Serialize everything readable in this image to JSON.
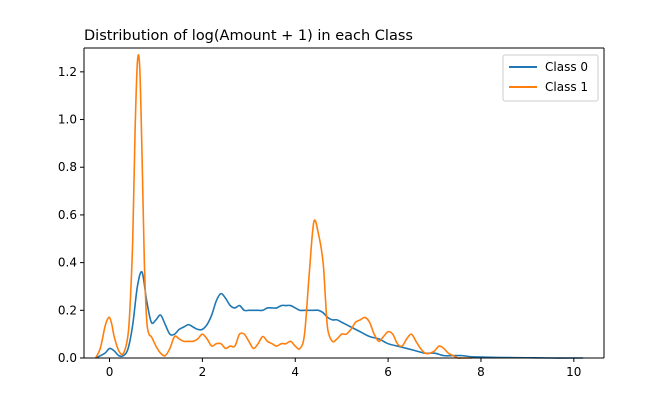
{
  "chart_data": {
    "type": "line",
    "title": "Distribution of log(Amount + 1) in each Class",
    "xlabel": "",
    "ylabel": "",
    "xlim": [
      -0.55,
      10.65
    ],
    "ylim": [
      0,
      1.3
    ],
    "xticks": [
      0,
      2,
      4,
      6,
      8,
      10
    ],
    "yticks": [
      0.0,
      0.2,
      0.4,
      0.6,
      0.8,
      1.0,
      1.2
    ],
    "grid": false,
    "legend_position": "top-right",
    "series": [
      {
        "name": "Class 0",
        "color": "#1f77b4",
        "x": [
          -0.3,
          -0.1,
          0.0,
          0.1,
          0.2,
          0.3,
          0.4,
          0.5,
          0.6,
          0.7,
          0.8,
          0.9,
          1.0,
          1.1,
          1.2,
          1.3,
          1.4,
          1.5,
          1.6,
          1.7,
          1.8,
          1.9,
          2.0,
          2.1,
          2.2,
          2.3,
          2.4,
          2.5,
          2.6,
          2.7,
          2.8,
          2.9,
          3.0,
          3.1,
          3.2,
          3.3,
          3.4,
          3.5,
          3.6,
          3.7,
          3.8,
          3.9,
          4.0,
          4.1,
          4.2,
          4.3,
          4.4,
          4.5,
          4.6,
          4.7,
          4.8,
          4.9,
          5.0,
          5.2,
          5.4,
          5.6,
          5.8,
          6.0,
          6.2,
          6.4,
          6.6,
          6.8,
          7.0,
          7.2,
          7.4,
          7.6,
          7.8,
          8.0,
          8.5,
          9.0,
          9.5,
          10.0,
          10.2
        ],
        "values": [
          0.0,
          0.02,
          0.04,
          0.03,
          0.01,
          0.01,
          0.04,
          0.14,
          0.3,
          0.36,
          0.24,
          0.15,
          0.16,
          0.18,
          0.14,
          0.1,
          0.1,
          0.12,
          0.13,
          0.14,
          0.13,
          0.12,
          0.12,
          0.14,
          0.18,
          0.24,
          0.27,
          0.25,
          0.22,
          0.21,
          0.22,
          0.2,
          0.2,
          0.2,
          0.2,
          0.2,
          0.21,
          0.21,
          0.21,
          0.22,
          0.22,
          0.22,
          0.21,
          0.2,
          0.2,
          0.2,
          0.2,
          0.2,
          0.19,
          0.17,
          0.16,
          0.16,
          0.15,
          0.13,
          0.11,
          0.09,
          0.08,
          0.06,
          0.05,
          0.04,
          0.03,
          0.02,
          0.02,
          0.01,
          0.01,
          0.01,
          0.005,
          0.004,
          0.002,
          0.001,
          0.0,
          0.0,
          0.0
        ]
      },
      {
        "name": "Class 1",
        "color": "#ff7f0e",
        "x": [
          -0.3,
          -0.2,
          -0.1,
          -0.05,
          0.0,
          0.05,
          0.1,
          0.2,
          0.3,
          0.4,
          0.45,
          0.5,
          0.55,
          0.6,
          0.65,
          0.7,
          0.75,
          0.8,
          0.85,
          0.9,
          1.0,
          1.1,
          1.2,
          1.3,
          1.4,
          1.5,
          1.6,
          1.7,
          1.8,
          1.9,
          2.0,
          2.1,
          2.2,
          2.3,
          2.4,
          2.5,
          2.6,
          2.7,
          2.8,
          2.9,
          3.0,
          3.1,
          3.2,
          3.3,
          3.4,
          3.5,
          3.6,
          3.7,
          3.8,
          3.9,
          4.0,
          4.1,
          4.2,
          4.3,
          4.4,
          4.5,
          4.6,
          4.65,
          4.7,
          4.8,
          4.9,
          5.0,
          5.1,
          5.2,
          5.3,
          5.4,
          5.5,
          5.6,
          5.7,
          5.8,
          5.9,
          6.0,
          6.1,
          6.2,
          6.3,
          6.4,
          6.5,
          6.6,
          6.7,
          6.8,
          6.9,
          7.0,
          7.1,
          7.2,
          7.3,
          7.4,
          7.5,
          7.6,
          7.8
        ],
        "values": [
          0.0,
          0.04,
          0.13,
          0.16,
          0.17,
          0.14,
          0.09,
          0.03,
          0.02,
          0.1,
          0.25,
          0.5,
          0.95,
          1.24,
          1.22,
          0.85,
          0.4,
          0.16,
          0.1,
          0.09,
          0.05,
          0.02,
          0.01,
          0.04,
          0.09,
          0.08,
          0.07,
          0.07,
          0.07,
          0.08,
          0.1,
          0.08,
          0.05,
          0.06,
          0.06,
          0.04,
          0.05,
          0.05,
          0.1,
          0.1,
          0.07,
          0.04,
          0.06,
          0.09,
          0.07,
          0.06,
          0.05,
          0.06,
          0.06,
          0.07,
          0.05,
          0.04,
          0.1,
          0.35,
          0.57,
          0.52,
          0.4,
          0.25,
          0.12,
          0.07,
          0.08,
          0.1,
          0.1,
          0.12,
          0.15,
          0.16,
          0.17,
          0.15,
          0.1,
          0.07,
          0.09,
          0.11,
          0.1,
          0.06,
          0.05,
          0.08,
          0.1,
          0.07,
          0.04,
          0.02,
          0.02,
          0.03,
          0.05,
          0.04,
          0.02,
          0.01,
          0.0,
          0.0,
          0.0
        ]
      }
    ]
  }
}
